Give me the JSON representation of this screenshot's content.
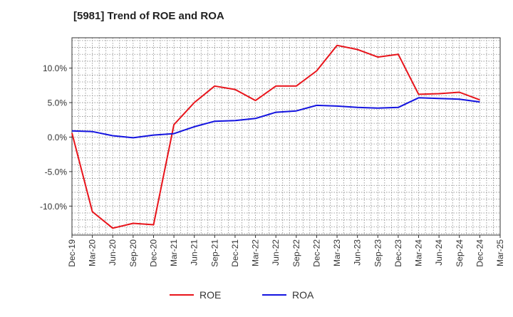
{
  "chart_data": {
    "type": "line",
    "title": "[5981]  Trend of ROE and ROA",
    "xlabel": "",
    "ylabel": "",
    "x": [
      "Dec-19",
      "Mar-20",
      "Jun-20",
      "Sep-20",
      "Dec-20",
      "Mar-21",
      "Jun-21",
      "Sep-21",
      "Dec-21",
      "Mar-22",
      "Jun-22",
      "Sep-22",
      "Dec-22",
      "Mar-23",
      "Jun-23",
      "Sep-23",
      "Dec-23",
      "Mar-24",
      "Jun-24",
      "Sep-24",
      "Dec-24",
      "Mar-25"
    ],
    "y_ticks": [
      10.0,
      5.0,
      0.0,
      -5.0,
      -10.0
    ],
    "y_tick_labels": [
      "10.0%",
      "5.0%",
      "0.0%",
      "-5.0%",
      "-10.0%"
    ],
    "ylim": [
      -14.2,
      14.4
    ],
    "grid": true,
    "legend_position": "bottom-center",
    "series": [
      {
        "name": "ROE",
        "color": "#e8141b",
        "values": [
          0.6,
          -10.8,
          -13.2,
          -12.5,
          -12.7,
          1.8,
          5.0,
          7.4,
          6.9,
          5.3,
          7.4,
          7.4,
          9.6,
          13.3,
          12.7,
          11.6,
          12.0,
          6.2,
          6.3,
          6.5,
          5.4,
          null
        ]
      },
      {
        "name": "ROA",
        "color": "#1414e0",
        "values": [
          0.9,
          0.8,
          0.2,
          -0.1,
          0.3,
          0.5,
          1.5,
          2.3,
          2.4,
          2.7,
          3.6,
          3.8,
          4.6,
          4.5,
          4.3,
          4.2,
          4.3,
          5.7,
          5.6,
          5.5,
          5.1,
          null
        ]
      }
    ]
  }
}
